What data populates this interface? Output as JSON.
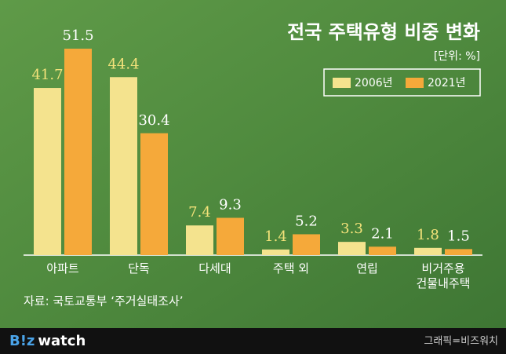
{
  "chart_data": {
    "type": "bar",
    "title": "전국 주택유형 비중 변화",
    "unit": "[단위: %]",
    "categories": [
      "아파트",
      "단독",
      "다세대",
      "주택 외",
      "연립",
      "비거주용\n건물내주택"
    ],
    "series": [
      {
        "name": "2006년",
        "color": "#f4e38e",
        "label_color": "#f3e27a",
        "values": [
          41.7,
          44.4,
          7.4,
          1.4,
          3.3,
          1.8
        ]
      },
      {
        "name": "2021년",
        "color": "#f5a93a",
        "label_color": "#ffffff",
        "values": [
          51.5,
          30.4,
          9.3,
          5.2,
          2.1,
          1.5
        ]
      }
    ],
    "source": "자료: 국토교통부 ‘주거실태조사’"
  },
  "footer": {
    "logo_brand": "B!z",
    "logo_word": "watch",
    "credit": "그래픽=비즈워치"
  }
}
